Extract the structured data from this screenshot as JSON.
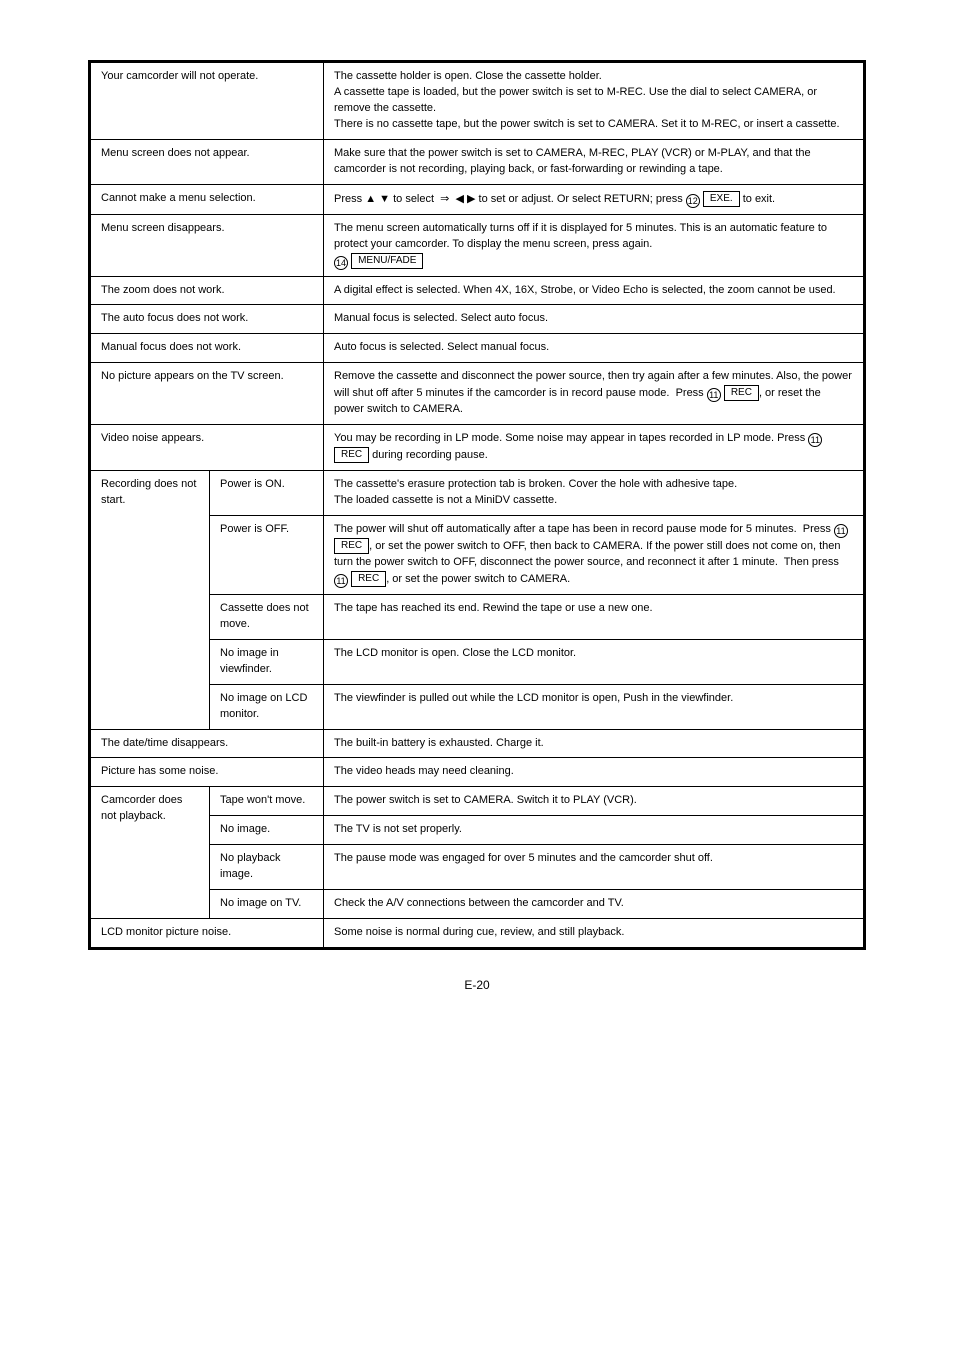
{
  "page_number": "E-20",
  "table": {
    "rows": [
      {
        "col_a": "Your camcorder will not operate.",
        "col_c": "The cassette holder is open. Close the cassette holder.\nA cassette tape is loaded, but the power switch is set to M-REC. Use the dial to select CAMERA, or remove the cassette.\nThere is no cassette tape, but the power switch is set to CAMERA. Set it to M-REC, or insert a cassette."
      },
      {
        "col_a": "Menu screen does not appear.",
        "col_c": "Make sure that the power switch is set to CAMERA, M-REC, PLAY (VCR) or M-PLAY, and that the camcorder is not recording, playing back, or fast-forwarding or rewinding a tape."
      },
      {
        "col_a": "Cannot make a menu selection.",
        "col_c": "Press <span class=\"sym\">▲ ▼</span> to select &nbsp;<span class=\"sym\">⇒</span>&nbsp; <span class=\"sym\">◀ ▶</span> to set or adjust. Or select RETURN; press <span class=\"circ\">12</span> <span class=\"key\">EXE.</span> to exit."
      },
      {
        "col_a": "Menu screen disappears.",
        "col_c": "The menu screen automatically turns off if it is displayed for 5 minutes. This is an automatic feature to protect your camcorder. To display the menu screen, press again.\n<span class=\"circ\">14</span> <span class=\"key\">MENU/FADE</span>"
      },
      {
        "col_a": "The zoom does not work.",
        "col_c": "A digital effect is selected. When 4X, 16X, Strobe, or Video Echo is selected, the zoom cannot be used."
      },
      {
        "col_a": "The auto focus does not work.",
        "col_c": "Manual focus is selected. Select auto focus."
      },
      {
        "col_a": "Manual focus does not work.",
        "col_c": "Auto focus is selected. Select manual focus."
      },
      {
        "col_a": "No picture appears on the TV screen.",
        "col_c": "Remove the cassette and disconnect the power source, then try again after a few minutes. Also, the power will shut off after 5 minutes if the camcorder is in record pause mode.&nbsp; Press <span class=\"circ\">11</span> <span class=\"key\">REC</span>, or reset the power switch to CAMERA."
      },
      {
        "col_a": "Video noise appears.",
        "col_c": "You may be recording in LP mode. Some noise may appear in tapes recorded in LP mode. Press <span class=\"circ\">11</span> <span class=\"key\">REC</span> during recording pause."
      },
      {
        "col_a": "Recording does not start.",
        "sub": [
          {
            "col_b": "Power is ON.",
            "col_c": "The cassette's erasure protection tab is broken. Cover the hole with adhesive tape.\nThe loaded cassette is not a MiniDV cassette."
          },
          {
            "col_b": "Power is OFF.",
            "col_c": "The power will shut off automatically after a tape has been in record pause mode for 5 minutes.&nbsp; Press <span class=\"circ\">11</span> <span class=\"key\">REC</span>, or set the power switch to OFF, then back to CAMERA. If the power still does not come on, then turn the power switch to OFF, disconnect the power source, and reconnect it after 1 minute.&nbsp; Then press <span class=\"circ\">11</span> <span class=\"key\">REC</span>, or set the power switch to CAMERA."
          },
          {
            "col_b": "Cassette does not move.",
            "col_c": "The tape has reached its end. Rewind the tape or use a new one."
          },
          {
            "col_b": "No image in viewfinder.",
            "col_c": "The LCD monitor is open. Close the LCD monitor."
          },
          {
            "col_b": "No image on LCD monitor.",
            "col_c": "The viewfinder is pulled out while the LCD monitor is open, Push in the viewfinder."
          }
        ]
      },
      {
        "col_a": "The date/time disappears.",
        "col_c": "The built-in battery is exhausted. Charge it."
      },
      {
        "col_a": "Picture has some noise.",
        "col_c": "The video heads may need cleaning."
      },
      {
        "col_a": "Camcorder does not playback.",
        "sub": [
          {
            "col_b": "Tape won't move.",
            "col_c": "The power switch is set to CAMERA. Switch it to PLAY (VCR)."
          },
          {
            "col_b": "No image.",
            "col_c": "The TV is not set properly."
          },
          {
            "col_b": "No playback image.",
            "col_c": "The pause mode was engaged for over 5 minutes and the camcorder shut off."
          },
          {
            "col_b": "No image on TV.",
            "col_c": "Check the A/V connections between the camcorder and TV."
          }
        ]
      },
      {
        "col_a": "LCD monitor picture noise.",
        "col_c": "Some noise is normal during cue, review, and still playback."
      }
    ]
  }
}
